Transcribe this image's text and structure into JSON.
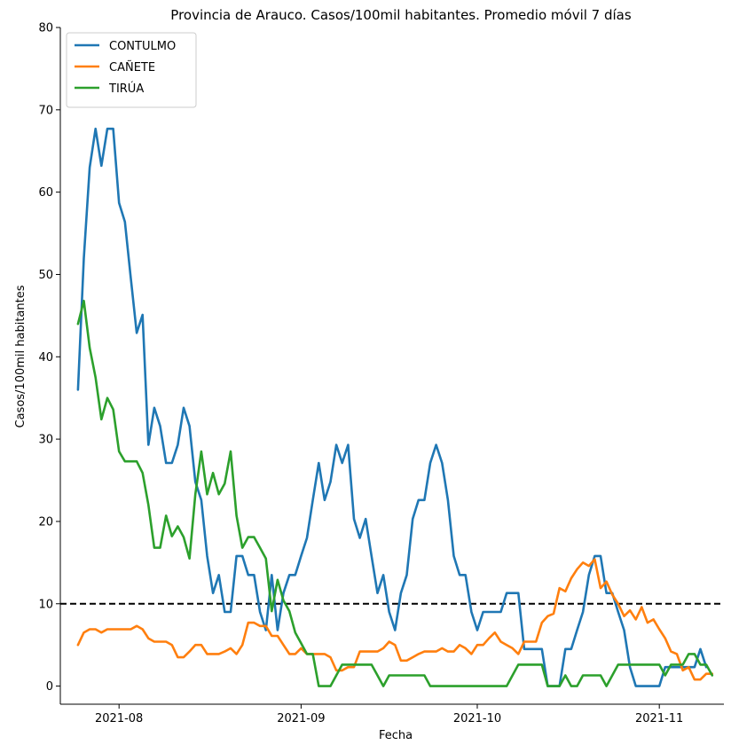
{
  "chart_data": {
    "type": "line",
    "title": "Provincia de Arauco. Casos/100mil habitantes. Promedio móvil 7 días",
    "xlabel": "Fecha",
    "ylabel": "Casos/100mil habitantes",
    "x_start": "2021-07-25",
    "x_ticks": [
      "2021-08",
      "2021-09",
      "2021-10",
      "2021-11"
    ],
    "y_ticks": [
      0,
      10,
      20,
      30,
      40,
      50,
      60,
      70,
      80
    ],
    "xlim": [
      "2021-07-22",
      "2021-11-12"
    ],
    "ylim": [
      -2.2,
      80
    ],
    "legend_position": "top-left",
    "reference_line": {
      "y": 10,
      "style": "dashed",
      "color": "#000000"
    },
    "series": [
      {
        "name": "CONTULMO",
        "color": "#1f77b4",
        "values": [
          36,
          52,
          63,
          67.7,
          63.2,
          67.7,
          67.7,
          58.7,
          56.4,
          49.6,
          42.9,
          45.1,
          29.3,
          33.8,
          31.6,
          27.1,
          27.1,
          29.3,
          33.8,
          31.6,
          24.8,
          22.6,
          15.8,
          11.3,
          13.5,
          9.0,
          9.0,
          15.8,
          15.8,
          13.5,
          13.5,
          9.0,
          6.8,
          13.5,
          6.8,
          11.3,
          13.5,
          13.5,
          15.8,
          18.0,
          22.6,
          27.1,
          22.6,
          24.8,
          29.3,
          27.1,
          29.3,
          20.3,
          18.0,
          20.3,
          15.8,
          11.3,
          13.5,
          9.0,
          6.8,
          11.3,
          13.5,
          20.3,
          22.6,
          22.6,
          27.1,
          29.3,
          27.1,
          22.6,
          15.8,
          13.5,
          13.5,
          9.0,
          6.8,
          9.0,
          9.0,
          9.0,
          9.0,
          11.3,
          11.3,
          11.3,
          4.5,
          4.5,
          4.5,
          4.5,
          0,
          0,
          0,
          4.5,
          4.5,
          6.8,
          9.0,
          13.5,
          15.8,
          15.8,
          11.3,
          11.3,
          9.0,
          6.8,
          2.3,
          0,
          0,
          0,
          0,
          0,
          2.3,
          2.3,
          2.3,
          2.3,
          2.3,
          2.3,
          4.5,
          2.3
        ]
      },
      {
        "name": "CAÑETE",
        "color": "#ff7f0e",
        "values": [
          5.0,
          6.5,
          6.9,
          6.9,
          6.5,
          6.9,
          6.9,
          6.9,
          6.9,
          6.9,
          7.3,
          6.9,
          5.8,
          5.4,
          5.4,
          5.4,
          5.0,
          3.5,
          3.5,
          4.2,
          5.0,
          5.0,
          3.9,
          3.9,
          3.9,
          4.2,
          4.6,
          3.9,
          5.0,
          7.7,
          7.7,
          7.3,
          7.3,
          6.1,
          6.1,
          5.0,
          3.9,
          3.9,
          4.6,
          3.9,
          3.9,
          3.9,
          3.9,
          3.5,
          1.9,
          1.9,
          2.3,
          2.3,
          4.2,
          4.2,
          4.2,
          4.2,
          4.6,
          5.4,
          5.0,
          3.1,
          3.1,
          3.5,
          3.9,
          4.2,
          4.2,
          4.2,
          4.6,
          4.2,
          4.2,
          5.0,
          4.6,
          3.9,
          5.0,
          5.0,
          5.8,
          6.5,
          5.4,
          5.0,
          4.6,
          3.9,
          5.4,
          5.4,
          5.4,
          7.7,
          8.5,
          8.8,
          11.9,
          11.5,
          13.1,
          14.2,
          15.0,
          14.6,
          15.4,
          11.9,
          12.7,
          11.1,
          10.0,
          8.5,
          9.2,
          8.1,
          9.6,
          7.7,
          8.1,
          6.9,
          5.8,
          4.2,
          3.9,
          1.9,
          2.3,
          0.8,
          0.8,
          1.5,
          1.5
        ]
      },
      {
        "name": "TIRÚA",
        "color": "#2ca02c",
        "values": [
          44,
          46.8,
          41.1,
          37.5,
          32.4,
          35,
          33.6,
          28.5,
          27.3,
          27.3,
          27.3,
          25.9,
          22.0,
          16.8,
          16.8,
          20.7,
          18.2,
          19.4,
          18.1,
          15.5,
          23.3,
          28.5,
          23.3,
          25.9,
          23.3,
          24.6,
          28.5,
          20.7,
          16.8,
          18.1,
          18.1,
          16.8,
          15.5,
          9.1,
          12.9,
          10.4,
          9.1,
          6.5,
          5.2,
          3.9,
          3.9,
          0,
          0,
          0,
          1.3,
          2.6,
          2.6,
          2.6,
          2.6,
          2.6,
          2.6,
          1.3,
          0,
          1.3,
          1.3,
          1.3,
          1.3,
          1.3,
          1.3,
          1.3,
          0,
          0,
          0,
          0,
          0,
          0,
          0,
          0,
          0,
          0,
          0,
          0,
          0,
          0,
          1.3,
          2.6,
          2.6,
          2.6,
          2.6,
          2.6,
          0,
          0,
          0,
          1.3,
          0,
          0,
          1.3,
          1.3,
          1.3,
          1.3,
          0,
          1.3,
          2.6,
          2.6,
          2.6,
          2.6,
          2.6,
          2.6,
          2.6,
          2.6,
          1.3,
          2.6,
          2.6,
          2.6,
          3.9,
          3.9,
          2.6,
          2.6,
          1.3
        ]
      }
    ]
  }
}
